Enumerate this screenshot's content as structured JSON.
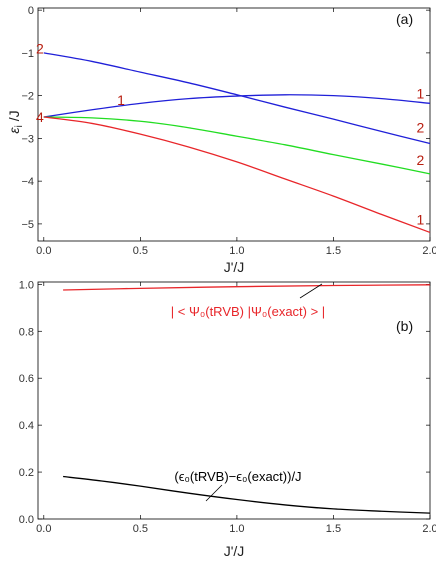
{
  "colors": {
    "red": "#e8262a",
    "blue": "#2020d8",
    "green": "#22dd22",
    "black": "#000000",
    "label": "#b81e10"
  },
  "chart_data": [
    {
      "type": "line",
      "panel_label": "(a)",
      "xlabel": "J'/J",
      "ylabel_main": "ε",
      "ylabel_sub": "i",
      "ylabel_rest": " /J",
      "xlim": [
        -0.03,
        2.0
      ],
      "ylim": [
        -5.4,
        0.05
      ],
      "x_ticks": [
        0.0,
        0.5,
        1.0,
        1.5,
        2.0
      ],
      "x_tick_labels": [
        "0.0",
        "0.5",
        "1.0",
        "1.5",
        "2.0"
      ],
      "y_ticks": [
        0,
        -1,
        -2,
        -3,
        -4,
        -5
      ],
      "y_tick_labels": [
        "0",
        "−1",
        "−2",
        "−3",
        "−4",
        "−5"
      ],
      "series": [
        {
          "color": "blue",
          "x": [
            0,
            0.25,
            0.5,
            0.75,
            1.0,
            1.25,
            1.5,
            1.75,
            2.0
          ],
          "y": [
            -1.0,
            -1.2,
            -1.45,
            -1.7,
            -1.98,
            -2.27,
            -2.55,
            -2.84,
            -3.12
          ]
        },
        {
          "color": "blue",
          "x": [
            0,
            0.25,
            0.5,
            0.75,
            1.0,
            1.25,
            1.5,
            1.75,
            2.0
          ],
          "y": [
            -2.5,
            -2.33,
            -2.18,
            -2.07,
            -2.01,
            -1.98,
            -2.0,
            -2.07,
            -2.18
          ]
        },
        {
          "color": "green",
          "x": [
            0,
            0.25,
            0.5,
            0.75,
            1.0,
            1.25,
            1.5,
            1.75,
            2.0
          ],
          "y": [
            -2.5,
            -2.52,
            -2.6,
            -2.75,
            -2.95,
            -3.15,
            -3.38,
            -3.6,
            -3.83
          ]
        },
        {
          "color": "red",
          "x": [
            0,
            0.25,
            0.5,
            0.75,
            1.0,
            1.25,
            1.5,
            1.75,
            2.0
          ],
          "y": [
            -2.5,
            -2.65,
            -2.9,
            -3.2,
            -3.55,
            -3.95,
            -4.35,
            -4.78,
            -5.2
          ]
        }
      ],
      "annotations": [
        {
          "text": "2",
          "x": -0.02,
          "y": -0.9
        },
        {
          "text": "4",
          "x": -0.02,
          "y": -2.5
        },
        {
          "text": "1",
          "x": 0.4,
          "y": -2.1
        },
        {
          "text": "1",
          "x": 1.95,
          "y": -1.95
        },
        {
          "text": "2",
          "x": 1.95,
          "y": -2.75
        },
        {
          "text": "2",
          "x": 1.95,
          "y": -3.5
        },
        {
          "text": "1",
          "x": 1.95,
          "y": -4.9
        }
      ]
    },
    {
      "type": "line",
      "panel_label": "(b)",
      "xlabel": "J'/J",
      "xlim": [
        -0.03,
        2.0
      ],
      "ylim": [
        0.0,
        1.01
      ],
      "x_ticks": [
        0.0,
        0.5,
        1.0,
        1.5,
        2.0
      ],
      "x_tick_labels": [
        "0.0",
        "0.5",
        "1.0",
        "1.5",
        "2.0"
      ],
      "y_ticks": [
        0.0,
        0.2,
        0.4,
        0.6,
        0.8,
        1.0
      ],
      "y_tick_labels": [
        "0.0",
        "0.2",
        "0.4",
        "0.6",
        "0.8",
        "1.0"
      ],
      "series": [
        {
          "color": "red",
          "x": [
            0.1,
            0.5,
            1.0,
            1.5,
            2.0
          ],
          "y": [
            0.976,
            0.983,
            0.99,
            0.995,
            0.998
          ]
        },
        {
          "color": "black",
          "x": [
            0.1,
            0.3,
            0.5,
            0.75,
            1.0,
            1.25,
            1.5,
            1.75,
            2.0
          ],
          "y": [
            0.181,
            0.162,
            0.14,
            0.11,
            0.083,
            0.06,
            0.043,
            0.033,
            0.025
          ]
        }
      ],
      "annotations": [
        {
          "text": "| < Ψ₀(tRVB) |Ψ₀(exact) > |",
          "color": "red"
        },
        {
          "text": "(ϵ₀(tRVB)−ϵ₀(exact))/J",
          "color": "black"
        }
      ]
    }
  ]
}
